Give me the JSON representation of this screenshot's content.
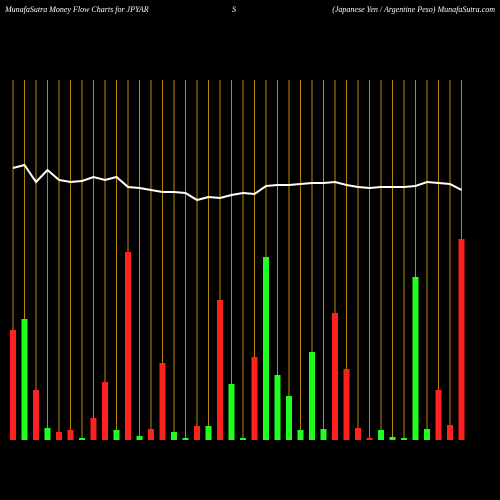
{
  "chart_data": {
    "type": "money-flow",
    "title": "MunafaSutra  Money Flow  Charts for JPYAR",
    "subtitle": "S",
    "annotation": "(Japanese  Yen  / Argentine  Peso) MunafaSutra.com",
    "background": "#000000",
    "grid_color": "#b8860b",
    "grid": true,
    "ylim": [
      0,
      360
    ],
    "series": [
      {
        "type": "bar",
        "values": [
          110,
          121,
          50,
          12,
          8,
          10,
          2,
          22,
          58,
          10,
          188,
          4,
          11,
          77,
          8,
          2,
          14,
          14,
          140,
          56,
          2,
          83,
          183,
          65,
          44,
          10,
          88,
          11,
          127,
          71,
          12,
          2,
          10,
          3,
          2,
          163,
          11,
          50,
          15,
          201
        ],
        "colors": [
          "#ff2020",
          "#20ff20",
          "#ff2020",
          "#20ff20",
          "#ff2020",
          "#ff2020",
          "#20ff20",
          "#ff2020",
          "#ff2020",
          "#20ff20",
          "#ff2020",
          "#20ff20",
          "#ff2020",
          "#ff2020",
          "#20ff20",
          "#20ff20",
          "#ff2020",
          "#20ff20",
          "#ff2020",
          "#20ff20",
          "#20ff20",
          "#ff2020",
          "#20ff20",
          "#20ff20",
          "#20ff20",
          "#20ff20",
          "#20ff20",
          "#20ff20",
          "#ff2020",
          "#ff2020",
          "#ff2020",
          "#ff2020",
          "#20ff20",
          "#20ff20",
          "#20ff20",
          "#20ff20",
          "#20ff20",
          "#ff2020",
          "#ff2020",
          "#ff2020"
        ]
      },
      {
        "type": "line",
        "color": "#ffffff",
        "values": [
          272,
          275,
          258,
          270,
          260,
          258,
          259,
          263,
          260,
          263,
          253,
          252,
          250,
          248,
          248,
          247,
          240,
          243,
          242,
          245,
          247,
          246,
          254,
          255,
          255,
          256,
          257,
          257,
          258,
          255,
          253,
          252,
          253,
          253,
          253,
          254,
          258,
          257,
          256,
          250
        ]
      }
    ]
  }
}
